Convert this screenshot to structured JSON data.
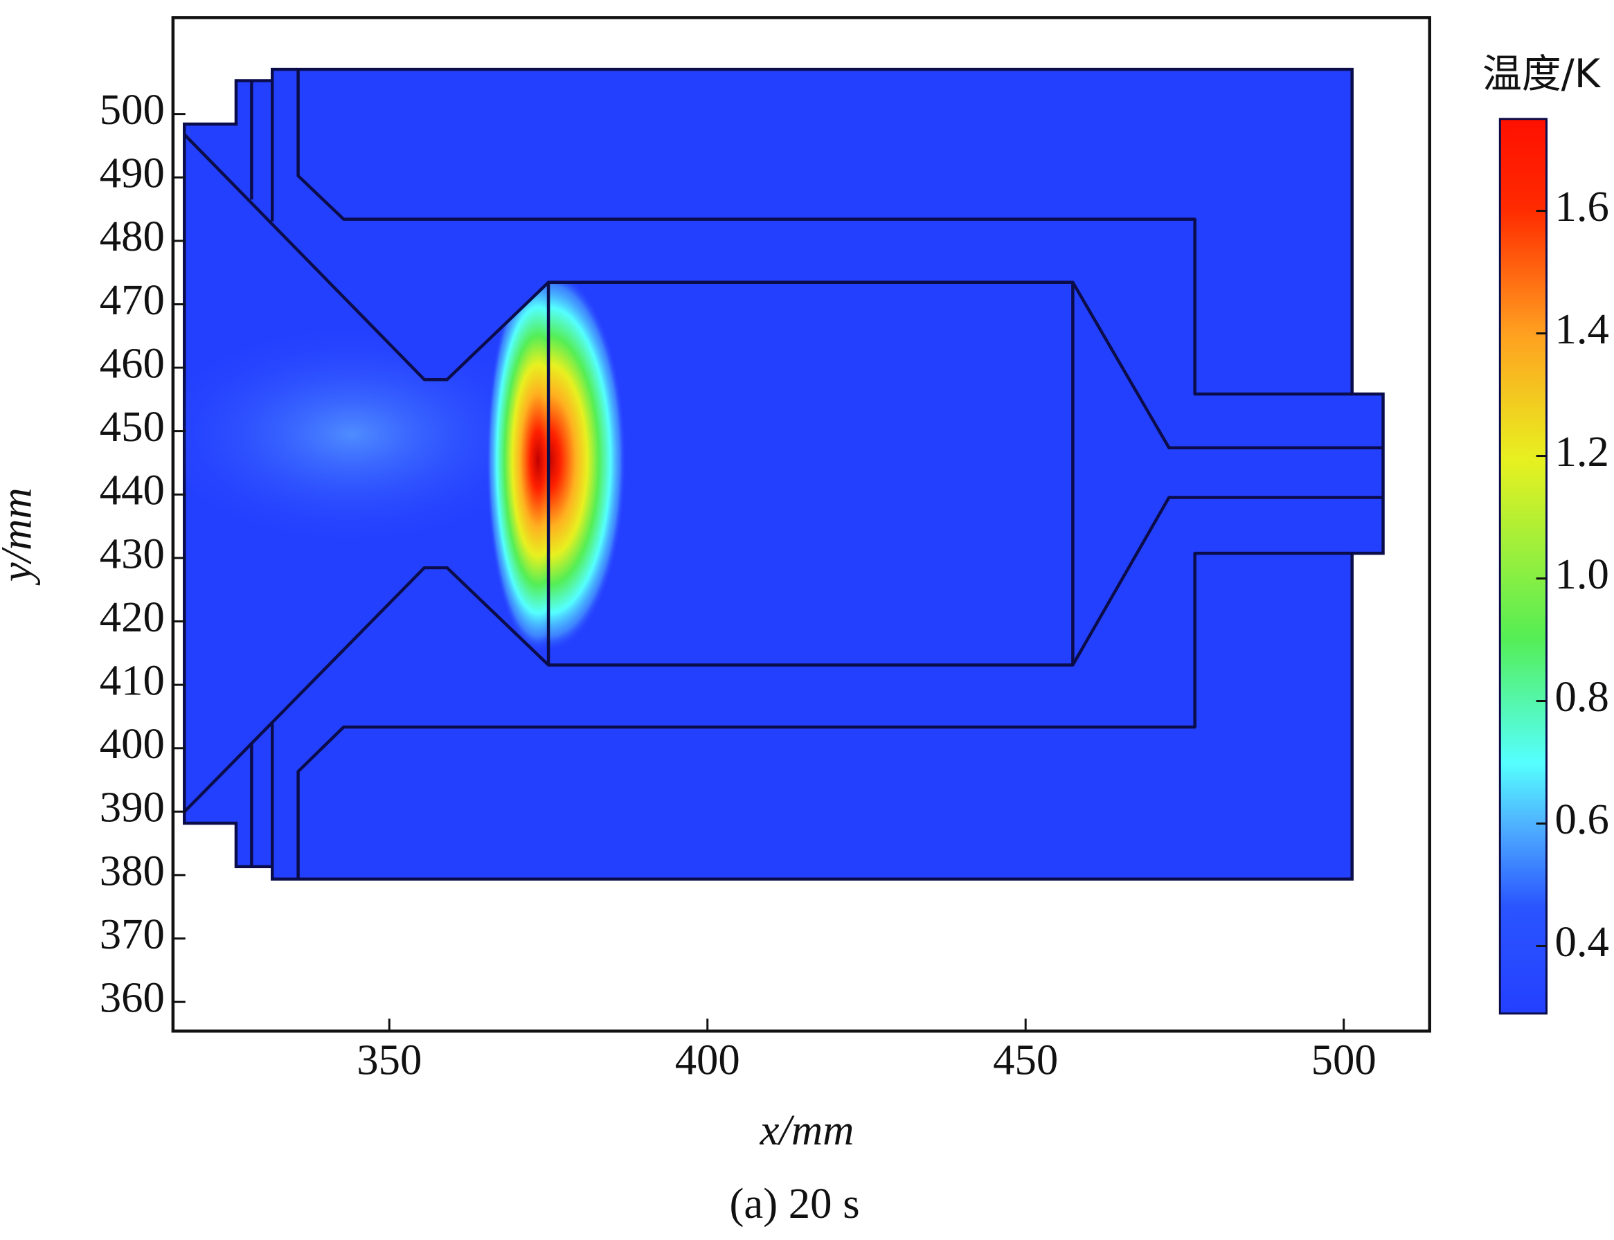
{
  "chart_data": {
    "type": "heatmap",
    "title": "(a) 20 s",
    "xlabel": "x/mm",
    "ylabel": "y/mm",
    "colorbar_label": "温度/K",
    "xlim": [
      316,
      513.5
    ],
    "ylim": [
      355.4,
      515.2
    ],
    "xticks": [
      350,
      400,
      450,
      500
    ],
    "yticks": [
      360,
      370,
      380,
      390,
      400,
      410,
      420,
      430,
      440,
      450,
      460,
      470,
      480,
      490,
      500
    ],
    "clim": [
      0.29,
      1.75
    ],
    "cticks": [
      0.4,
      0.6,
      0.8,
      {
        "value": 1,
        "label": "1.0"
      },
      1.2,
      1.4,
      1.6
    ]
  }
}
